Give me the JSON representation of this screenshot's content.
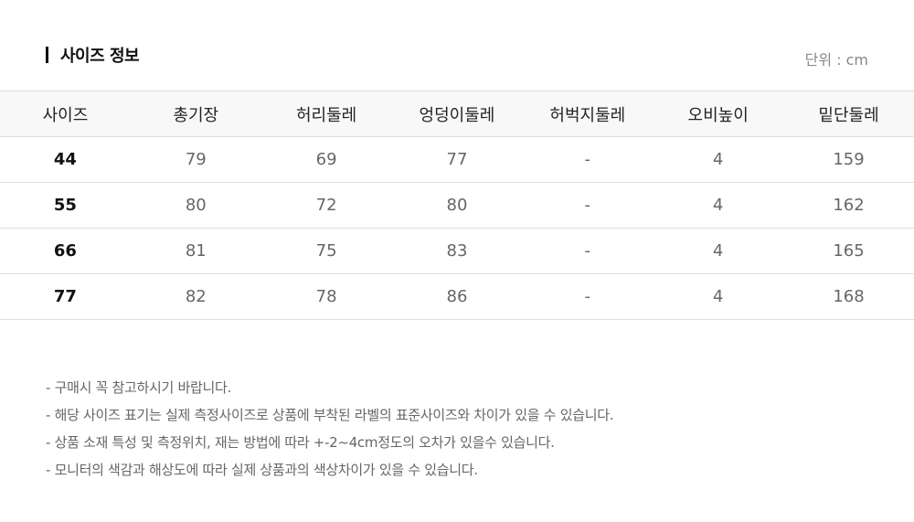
{
  "title": "사이즈 정보",
  "unit": "단위 : cm",
  "table": {
    "headers": [
      "사이즈",
      "총기장",
      "허리둘레",
      "엉덩이둘레",
      "허벅지둘레",
      "오비높이",
      "밑단둘레"
    ],
    "rows": [
      [
        "44",
        "79",
        "69",
        "77",
        "-",
        "4",
        "159"
      ],
      [
        "55",
        "80",
        "72",
        "80",
        "-",
        "4",
        "162"
      ],
      [
        "66",
        "81",
        "75",
        "83",
        "-",
        "4",
        "165"
      ],
      [
        "77",
        "82",
        "78",
        "86",
        "-",
        "4",
        "168"
      ]
    ]
  },
  "notes": [
    "- 구매시 꼭 참고하시기 바랍니다.",
    "- 해당 사이즈 표기는 실제 측정사이즈로 상품에 부착된 라벨의 표준사이즈와 차이가 있을 수 있습니다.",
    "- 상품 소재 특성 및 측정위치, 재는 방법에 따라 +-2~4cm정도의 오차가 있을수 있습니다.",
    "- 모니터의 색감과 해상도에 따라 실제 상품과의 색상차이가 있을 수 있습니다."
  ]
}
